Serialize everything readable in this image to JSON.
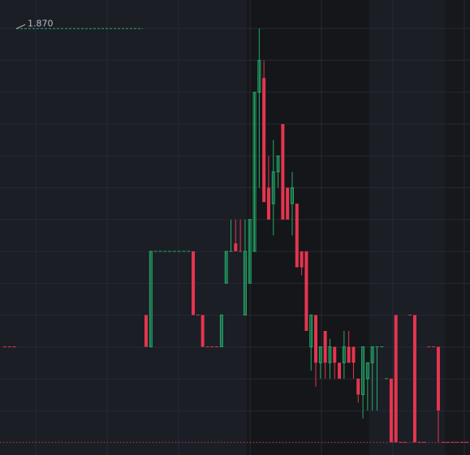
{
  "chart_data": {
    "type": "candlestick",
    "ylim": [
      1.602,
      1.888
    ],
    "up_color": "#22ab6a",
    "down_color": "#e5354f",
    "max_marker": {
      "value": 1.87,
      "label": "1.870"
    },
    "last_price": 1.61,
    "ohlc": [
      [
        1.67,
        1.67,
        1.67,
        1.67
      ],
      [
        1.67,
        1.67,
        1.67,
        1.67
      ],
      [
        1.67,
        1.67,
        1.67,
        1.67
      ],
      null,
      null,
      null,
      null,
      null,
      null,
      null,
      null,
      null,
      null,
      null,
      null,
      null,
      null,
      null,
      null,
      null,
      null,
      null,
      null,
      null,
      null,
      null,
      null,
      null,
      null,
      null,
      [
        1.69,
        1.69,
        1.67,
        1.67
      ],
      [
        1.67,
        1.73,
        1.67,
        1.73
      ],
      [
        1.73,
        1.73,
        1.73,
        1.73
      ],
      [
        1.73,
        1.73,
        1.73,
        1.73
      ],
      [
        1.73,
        1.73,
        1.73,
        1.73
      ],
      [
        1.73,
        1.73,
        1.73,
        1.73
      ],
      [
        1.73,
        1.73,
        1.73,
        1.73
      ],
      [
        1.73,
        1.73,
        1.73,
        1.73
      ],
      [
        1.73,
        1.73,
        1.73,
        1.73
      ],
      [
        1.73,
        1.73,
        1.73,
        1.73
      ],
      [
        1.73,
        1.73,
        1.69,
        1.69
      ],
      [
        1.69,
        1.69,
        1.69,
        1.69
      ],
      [
        1.69,
        1.69,
        1.67,
        1.67
      ],
      [
        1.67,
        1.67,
        1.67,
        1.67
      ],
      [
        1.67,
        1.67,
        1.67,
        1.67
      ],
      [
        1.67,
        1.67,
        1.67,
        1.67
      ],
      [
        1.67,
        1.69,
        1.67,
        1.69
      ],
      [
        1.71,
        1.73,
        1.71,
        1.73
      ],
      [
        1.73,
        1.75,
        1.73,
        1.73
      ],
      [
        1.735,
        1.75,
        1.73,
        1.73
      ],
      [
        1.73,
        1.75,
        1.73,
        1.73
      ],
      [
        1.69,
        1.75,
        1.69,
        1.73
      ],
      [
        1.71,
        1.75,
        1.71,
        1.75
      ],
      [
        1.73,
        1.83,
        1.73,
        1.83
      ],
      [
        1.83,
        1.87,
        1.77,
        1.85
      ],
      [
        1.839,
        1.85,
        1.761,
        1.761
      ],
      [
        1.77,
        1.79,
        1.75,
        1.75
      ],
      [
        1.76,
        1.8,
        1.74,
        1.78
      ],
      [
        1.78,
        1.79,
        1.77,
        1.79
      ],
      [
        1.81,
        1.81,
        1.75,
        1.75
      ],
      [
        1.77,
        1.77,
        1.75,
        1.75
      ],
      [
        1.76,
        1.78,
        1.74,
        1.77
      ],
      [
        1.76,
        1.76,
        1.72,
        1.72
      ],
      [
        1.73,
        1.73,
        1.715,
        1.72
      ],
      [
        1.73,
        1.73,
        1.68,
        1.68
      ],
      [
        1.67,
        1.69,
        1.655,
        1.69
      ],
      [
        1.69,
        1.69,
        1.645,
        1.66
      ],
      [
        1.66,
        1.67,
        1.65,
        1.67
      ],
      [
        1.68,
        1.68,
        1.65,
        1.66
      ],
      [
        1.66,
        1.675,
        1.65,
        1.67
      ],
      [
        1.67,
        1.67,
        1.65,
        1.66
      ],
      [
        1.66,
        1.66,
        1.65,
        1.65
      ],
      [
        1.66,
        1.68,
        1.65,
        1.67
      ],
      [
        1.67,
        1.68,
        1.66,
        1.66
      ],
      [
        1.67,
        1.67,
        1.65,
        1.66
      ],
      [
        1.65,
        1.65,
        1.635,
        1.64
      ],
      [
        1.64,
        1.67,
        1.625,
        1.67
      ],
      [
        1.65,
        1.66,
        1.63,
        1.66
      ],
      [
        1.66,
        1.67,
        1.63,
        1.67
      ],
      [
        1.67,
        1.67,
        1.63,
        1.67
      ],
      [
        1.67,
        1.67,
        1.67,
        1.67
      ],
      [
        1.65,
        1.65,
        1.65,
        1.65
      ],
      [
        1.65,
        1.65,
        1.61,
        1.61
      ],
      [
        1.69,
        1.69,
        1.61,
        1.61
      ],
      [
        1.61,
        1.61,
        1.61,
        1.61
      ],
      [
        1.61,
        1.61,
        1.61,
        1.61
      ],
      [
        1.69,
        1.69,
        1.69,
        1.69
      ],
      [
        1.69,
        1.69,
        1.61,
        1.61
      ],
      [
        1.61,
        1.61,
        1.61,
        1.61
      ],
      [
        1.61,
        1.61,
        1.61,
        1.61
      ],
      [
        1.67,
        1.67,
        1.67,
        1.67
      ],
      [
        1.67,
        1.67,
        1.67,
        1.67
      ],
      [
        1.67,
        1.67,
        1.61,
        1.63
      ],
      [
        1.61,
        1.61,
        1.61,
        1.61
      ],
      [
        1.61,
        1.61,
        1.61,
        1.61
      ],
      [
        1.61,
        1.61,
        1.61,
        1.61
      ],
      [
        1.61,
        1.61,
        1.61,
        1.61
      ],
      [
        1.61,
        1.61,
        1.61,
        1.61
      ],
      [
        1.61,
        1.61,
        1.61,
        1.61
      ]
    ]
  }
}
